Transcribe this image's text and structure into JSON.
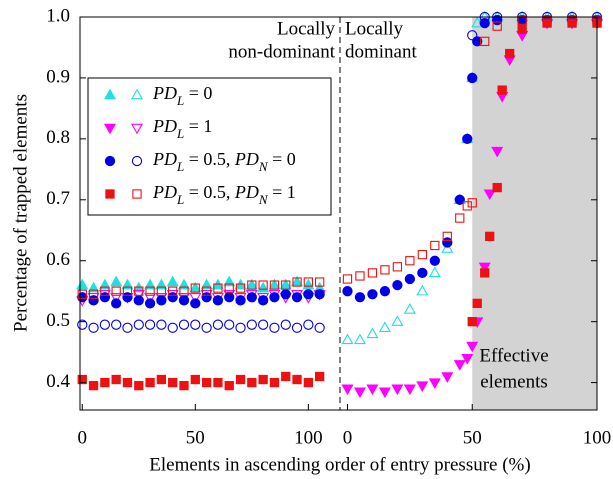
{
  "chart_data": {
    "type": "scatter",
    "xlabel": "Elements in ascending order of entry pressure (%)",
    "ylabel": "Percentage of trapped elements",
    "ylim": [
      0.355,
      1.0
    ],
    "yticks": [
      0.4,
      0.5,
      0.6,
      0.7,
      0.8,
      0.9,
      {
        "value": 1,
        "label": "1.0"
      }
    ],
    "legend": [
      {
        "name_parts": [
          {
            "text": "PD"
          },
          {
            "sub": "L"
          },
          {
            "text": " = 0"
          }
        ],
        "color": "#1fe0e0",
        "marker": "triangle-up"
      },
      {
        "name_parts": [
          {
            "text": "PD"
          },
          {
            "sub": "L"
          },
          {
            "text": " = 1"
          }
        ],
        "color": "#ff00ff",
        "marker": "triangle-down"
      },
      {
        "name_parts": [
          {
            "text": "PD"
          },
          {
            "sub": "L"
          },
          {
            "text": " = 0.5, "
          },
          {
            "text": "PD"
          },
          {
            "sub": "N"
          },
          {
            "text": " = 0"
          }
        ],
        "color": "#0000e6",
        "marker": "circle"
      },
      {
        "name_parts": [
          {
            "text": "PD"
          },
          {
            "sub": "L"
          },
          {
            "text": " = 0.5, "
          },
          {
            "text": "PD"
          },
          {
            "sub": "N"
          },
          {
            "text": " = 1"
          }
        ],
        "color": "#ee1111",
        "marker": "square"
      }
    ],
    "panels": [
      {
        "label_lines": [
          "Locally",
          "non-dominant"
        ],
        "xlim": [
          -1,
          114
        ],
        "xticks": [
          0,
          50,
          100
        ],
        "x": [
          0,
          5,
          10,
          15,
          20,
          25,
          30,
          35,
          40,
          45,
          50,
          55,
          60,
          65,
          70,
          75,
          80,
          85,
          90,
          95,
          100,
          105
        ],
        "series": [
          {
            "legend": 0,
            "filled": true,
            "values": [
              0.56,
              0.555,
              0.56,
              0.565,
              0.56,
              0.555,
              0.56,
              0.56,
              0.565,
              0.56,
              0.555,
              0.56,
              0.56,
              0.565,
              0.56,
              0.56,
              0.555,
              0.56,
              0.56,
              0.565,
              0.56,
              0.555
            ]
          },
          {
            "legend": 1,
            "filled": false,
            "values": [
              0.535,
              0.54,
              0.545,
              0.54,
              0.54,
              0.545,
              0.54,
              0.54,
              0.545,
              0.54,
              0.54,
              0.545,
              0.54,
              0.545,
              0.54,
              0.545,
              0.54,
              0.545,
              0.54,
              0.545,
              0.54,
              0.545
            ]
          },
          {
            "legend": 2,
            "filled": true,
            "values": [
              0.54,
              0.535,
              0.54,
              0.53,
              0.54,
              0.535,
              0.53,
              0.535,
              0.54,
              0.535,
              0.53,
              0.54,
              0.535,
              0.54,
              0.535,
              0.54,
              0.535,
              0.54,
              0.545,
              0.54,
              0.545,
              0.545
            ]
          },
          {
            "legend": 2,
            "filled": false,
            "values": [
              0.495,
              0.49,
              0.495,
              0.495,
              0.49,
              0.495,
              0.495,
              0.495,
              0.49,
              0.495,
              0.495,
              0.49,
              0.495,
              0.495,
              0.49,
              0.495,
              0.495,
              0.49,
              0.495,
              0.49,
              0.495,
              0.49
            ]
          },
          {
            "legend": 3,
            "filled": true,
            "values": [
              0.405,
              0.395,
              0.4,
              0.405,
              0.4,
              0.395,
              0.4,
              0.405,
              0.4,
              0.395,
              0.405,
              0.4,
              0.4,
              0.395,
              0.405,
              0.4,
              0.405,
              0.4,
              0.41,
              0.405,
              0.4,
              0.41
            ]
          },
          {
            "legend": 3,
            "filled": false,
            "values": [
              0.545,
              0.545,
              0.55,
              0.55,
              0.55,
              0.55,
              0.55,
              0.55,
              0.55,
              0.55,
              0.555,
              0.55,
              0.555,
              0.555,
              0.555,
              0.56,
              0.56,
              0.56,
              0.56,
              0.565,
              0.565,
              0.565
            ]
          }
        ]
      },
      {
        "label_lines": [
          "Locally",
          "dominant"
        ],
        "xlim": [
          -3,
          100
        ],
        "xticks": [
          0,
          50,
          100
        ],
        "shade": [
          50,
          100
        ],
        "annotation_lines": [
          "Effective",
          "elements"
        ],
        "series": [
          {
            "legend": 0,
            "filled": false,
            "x": [
              0,
              5,
              10,
              15,
              20,
              25,
              30,
              35,
              40,
              45,
              48,
              50,
              52,
              55,
              60,
              70,
              80,
              90,
              100
            ],
            "values": [
              0.47,
              0.47,
              0.48,
              0.49,
              0.5,
              0.52,
              0.55,
              0.58,
              0.62,
              0.7,
              0.8,
              0.9,
              0.99,
              1,
              1,
              1,
              1,
              1,
              1
            ]
          },
          {
            "legend": 1,
            "filled": true,
            "x": [
              0,
              5,
              10,
              15,
              20,
              25,
              30,
              35,
              40,
              45,
              48,
              50,
              52,
              55,
              57,
              60,
              62,
              65,
              70,
              80,
              90,
              100
            ],
            "values": [
              0.39,
              0.385,
              0.39,
              0.385,
              0.39,
              0.39,
              0.395,
              0.4,
              0.41,
              0.43,
              0.44,
              0.46,
              0.5,
              0.59,
              0.71,
              0.78,
              0.87,
              0.93,
              0.97,
              0.99,
              0.99,
              0.99
            ]
          },
          {
            "legend": 2,
            "filled": true,
            "x": [
              0,
              5,
              10,
              15,
              20,
              25,
              30,
              35,
              40,
              45,
              48,
              50,
              52,
              55,
              60,
              70,
              80,
              90,
              100
            ],
            "values": [
              0.55,
              0.54,
              0.545,
              0.55,
              0.56,
              0.57,
              0.58,
              0.6,
              0.63,
              0.7,
              0.8,
              0.9,
              0.96,
              0.99,
              0.995,
              0.995,
              0.995,
              0.995,
              0.995
            ]
          },
          {
            "legend": 2,
            "filled": false,
            "x": [
              50,
              55,
              60,
              70,
              80,
              90,
              100
            ],
            "values": [
              0.97,
              1,
              1,
              1,
              1,
              1,
              1
            ]
          },
          {
            "legend": 3,
            "filled": false,
            "x": [
              0,
              5,
              10,
              15,
              20,
              25,
              30,
              35,
              40,
              45,
              48,
              50,
              55,
              60,
              70,
              80,
              90,
              100
            ],
            "values": [
              0.57,
              0.575,
              0.58,
              0.585,
              0.59,
              0.6,
              0.61,
              0.625,
              0.64,
              0.67,
              0.69,
              0.695,
              0.96,
              0.985,
              0.995,
              0.995,
              0.995,
              0.995
            ]
          },
          {
            "legend": 3,
            "filled": true,
            "x": [
              50,
              52,
              55,
              57,
              60,
              62,
              65,
              70,
              80,
              90,
              100
            ],
            "values": [
              0.5,
              0.53,
              0.58,
              0.64,
              0.72,
              0.88,
              0.94,
              0.98,
              0.99,
              0.99,
              0.99
            ]
          }
        ]
      }
    ]
  }
}
